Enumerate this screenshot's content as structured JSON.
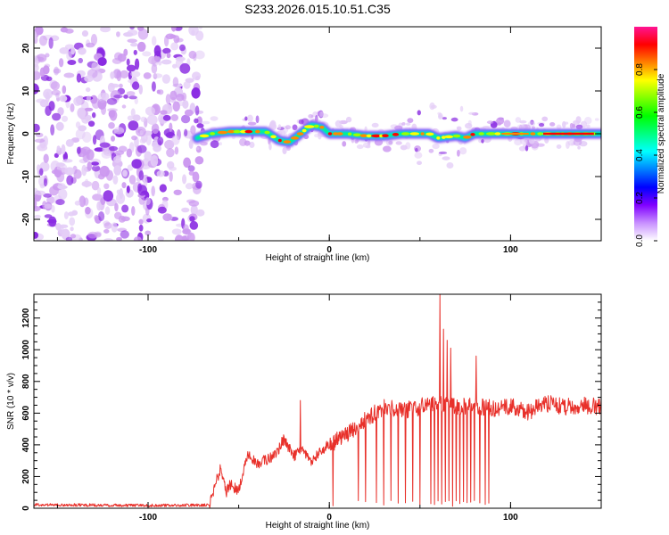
{
  "title": "S233.2026.015.10.51.C35",
  "chart_data": [
    {
      "type": "heatmap",
      "xlabel": "Height of straight line (km)",
      "ylabel": "Frequency (Hz)",
      "xlim": [
        -163,
        150
      ],
      "ylim": [
        -25,
        25
      ],
      "xticks": [
        -100,
        0,
        100
      ],
      "yticks": [
        -20,
        -10,
        0,
        10,
        20
      ],
      "colorbar": {
        "label": "Normalized spectral amplitude",
        "range": [
          0,
          1
        ],
        "ticks": [
          0.0,
          0.2,
          0.4,
          0.6,
          0.8
        ]
      },
      "noise_region_x": [
        -163,
        -73
      ],
      "ridge": {
        "x": [
          -73,
          -65,
          -55,
          -45,
          -35,
          -28,
          -22,
          -16,
          -10,
          -4,
          0,
          10,
          20,
          30,
          40,
          50,
          55,
          60,
          70,
          75,
          80,
          90,
          100,
          110,
          120,
          130,
          140,
          150
        ],
        "y": [
          -1,
          0,
          0.5,
          0.5,
          0.5,
          -1.5,
          -2,
          0,
          2,
          1.5,
          0,
          0,
          -0.5,
          -0.5,
          0,
          0,
          0,
          -1,
          -0.5,
          -1,
          0,
          0,
          0,
          0,
          0,
          0,
          0,
          0
        ]
      },
      "colors": [
        "#ffffff",
        "#e4cdf7",
        "#cc99f0",
        "#8a2be2",
        "#4400ff",
        "#0055ff",
        "#00c8ff",
        "#00ff66",
        "#99ff00",
        "#ffff00",
        "#ff8800",
        "#ff0000",
        "#ff1493"
      ]
    },
    {
      "type": "line",
      "xlabel": "Height of straight line (km)",
      "ylabel": "SNR (10 * v/v)",
      "xlim": [
        -163,
        150
      ],
      "ylim": [
        0,
        1350
      ],
      "xticks": [
        -100,
        0,
        100
      ],
      "yticks": [
        0,
        200,
        400,
        600,
        800,
        1000,
        1200
      ],
      "color": "#e8302a",
      "envelope": {
        "x": [
          -163,
          -100,
          -66,
          -62,
          -60,
          -57,
          -55,
          -50,
          -45,
          -40,
          -30,
          -25,
          -20,
          -15,
          -10,
          -5,
          0,
          10,
          20,
          30,
          40,
          50,
          55,
          60,
          70,
          80,
          90,
          100,
          110,
          120,
          130,
          140,
          150
        ],
        "y": [
          22,
          18,
          20,
          180,
          250,
          100,
          150,
          110,
          350,
          280,
          330,
          440,
          330,
          360,
          300,
          360,
          400,
          470,
          560,
          640,
          610,
          640,
          650,
          660,
          640,
          650,
          630,
          640,
          610,
          660,
          640,
          650,
          640
        ]
      },
      "spikes": [
        {
          "x": -16,
          "y": 680
        },
        {
          "x": 50,
          "y": 960
        },
        {
          "x": 61,
          "y": 1350
        },
        {
          "x": 63,
          "y": 1130
        },
        {
          "x": 65,
          "y": 1060
        },
        {
          "x": 67,
          "y": 1010
        },
        {
          "x": 70,
          "y": 1020
        },
        {
          "x": 72,
          "y": 870
        },
        {
          "x": 74,
          "y": 950
        },
        {
          "x": 78,
          "y": 860
        },
        {
          "x": 81,
          "y": 960
        }
      ],
      "dropouts": [
        2,
        16,
        20,
        26,
        30,
        34,
        38,
        42,
        46,
        50,
        56,
        58,
        60,
        62,
        64,
        66,
        68,
        70,
        72,
        74,
        76,
        78,
        80,
        83,
        86,
        88
      ]
    }
  ]
}
